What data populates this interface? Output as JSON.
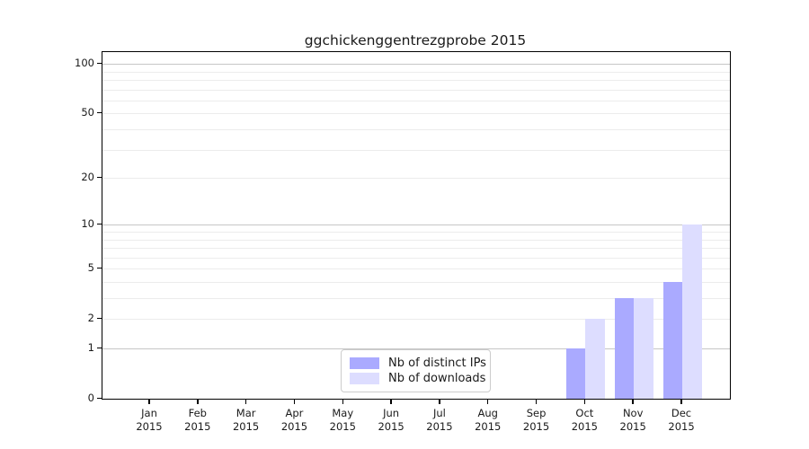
{
  "chart_data": {
    "type": "bar",
    "title": "ggchickenggentrezgprobe 2015",
    "categories": [
      "Jan 2015",
      "Feb 2015",
      "Mar 2015",
      "Apr 2015",
      "May 2015",
      "Jun 2015",
      "Jul 2015",
      "Aug 2015",
      "Sep 2015",
      "Oct 2015",
      "Nov 2015",
      "Dec 2015"
    ],
    "series": [
      {
        "name": "Nb of distinct IPs",
        "color": "#aaaaff",
        "values": [
          0,
          0,
          0,
          0,
          0,
          0,
          0,
          0,
          0,
          1,
          3,
          4
        ]
      },
      {
        "name": "Nb of downloads",
        "color": "#ddddff",
        "values": [
          0,
          0,
          0,
          0,
          0,
          0,
          0,
          0,
          0,
          2,
          3,
          10
        ]
      }
    ],
    "yscale": "log1p",
    "ylim": [
      0,
      118
    ],
    "yticks": [
      0,
      1,
      2,
      5,
      10,
      20,
      50,
      100
    ],
    "grid": {
      "on": true,
      "major_values": [
        1,
        10,
        100
      ],
      "minor_values": [
        2,
        3,
        4,
        5,
        6,
        7,
        8,
        9,
        20,
        30,
        40,
        50,
        60,
        70,
        80,
        90
      ],
      "major_color": "#c6c6c6",
      "minor_color": "#ececec"
    },
    "legend": {
      "position": "lower center",
      "border_color": "#cccccc"
    },
    "colors": {
      "spine": "#000000",
      "text": "#1a1a1a",
      "background": "#ffffff"
    }
  }
}
